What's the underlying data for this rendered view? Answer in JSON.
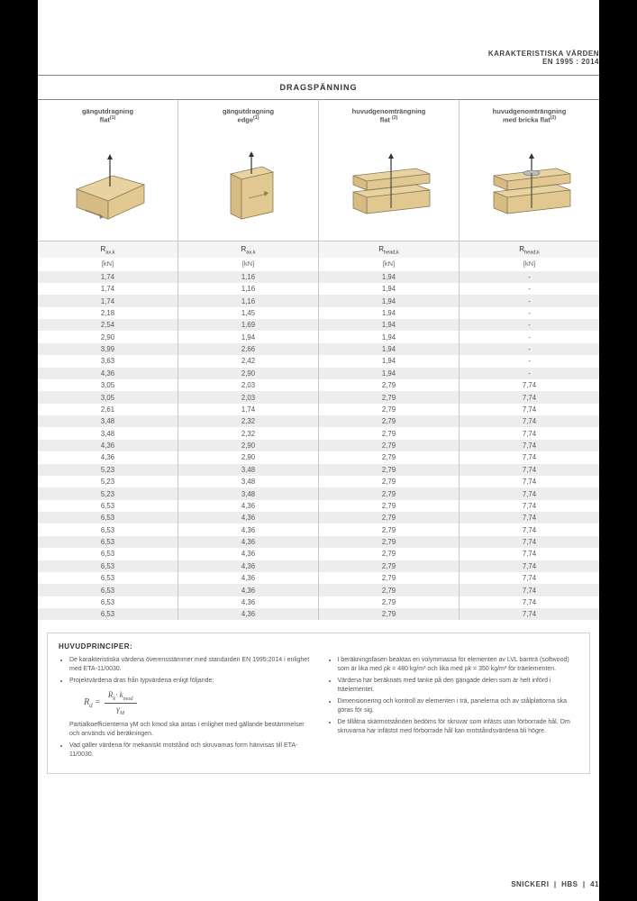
{
  "header": {
    "line1": "KARAKTERISTISKA VÄRDEN",
    "line2": "EN 1995 : 2014"
  },
  "section_title": "DRAGSPÄNNING",
  "columns": [
    {
      "title_l1": "gängutdragning",
      "title_l2": "flat",
      "sup": "(1)",
      "symbol": "R",
      "symbol_sub": "ax,k",
      "unit": "[kN]"
    },
    {
      "title_l1": "gängutdragning",
      "title_l2": "edge",
      "sup": "(1)",
      "symbol": "R",
      "symbol_sub": "ax,k",
      "unit": "[kN]"
    },
    {
      "title_l1": "huvudgenomträngning",
      "title_l2": "flat ",
      "sup": "(2)",
      "symbol": "R",
      "symbol_sub": "head,k",
      "unit": "[kN]"
    },
    {
      "title_l1": "huvudgenomträngning",
      "title_l2": "med bricka flat",
      "sup": "(2)",
      "symbol": "R",
      "symbol_sub": "head,k",
      "unit": "[kN]"
    }
  ],
  "rows": [
    [
      "1,74",
      "1,16",
      "1,94",
      "-"
    ],
    [
      "1,74",
      "1,16",
      "1,94",
      "-"
    ],
    [
      "1,74",
      "1,16",
      "1,94",
      "-"
    ],
    [
      "2,18",
      "1,45",
      "1,94",
      "-"
    ],
    [
      "2,54",
      "1,69",
      "1,94",
      "-"
    ],
    [
      "2,90",
      "1,94",
      "1,94",
      "-"
    ],
    [
      "3,99",
      "2,66",
      "1,94",
      "-"
    ],
    [
      "3,63",
      "2,42",
      "1,94",
      "-"
    ],
    [
      "4,36",
      "2,90",
      "1,94",
      "-"
    ],
    [
      "3,05",
      "2,03",
      "2,79",
      "7,74"
    ],
    [
      "3,05",
      "2,03",
      "2,79",
      "7,74"
    ],
    [
      "2,61",
      "1,74",
      "2,79",
      "7,74"
    ],
    [
      "3,48",
      "2,32",
      "2,79",
      "7,74"
    ],
    [
      "3,48",
      "2,32",
      "2,79",
      "7,74"
    ],
    [
      "4,36",
      "2,90",
      "2,79",
      "7,74"
    ],
    [
      "4,36",
      "2,90",
      "2,79",
      "7,74"
    ],
    [
      "5,23",
      "3,48",
      "2,79",
      "7,74"
    ],
    [
      "5,23",
      "3,48",
      "2,79",
      "7,74"
    ],
    [
      "5,23",
      "3,48",
      "2,79",
      "7,74"
    ],
    [
      "6,53",
      "4,36",
      "2,79",
      "7,74"
    ],
    [
      "6,53",
      "4,36",
      "2,79",
      "7,74"
    ],
    [
      "6,53",
      "4,36",
      "2,79",
      "7,74"
    ],
    [
      "6,53",
      "4,36",
      "2,79",
      "7,74"
    ],
    [
      "6,53",
      "4,36",
      "2,79",
      "7,74"
    ],
    [
      "6,53",
      "4,36",
      "2,79",
      "7,74"
    ],
    [
      "6,53",
      "4,36",
      "2,79",
      "7,74"
    ],
    [
      "6,53",
      "4,36",
      "2,79",
      "7,74"
    ],
    [
      "6,53",
      "4,36",
      "2,79",
      "7,74"
    ],
    [
      "6,53",
      "4,36",
      "2,79",
      "7,74"
    ]
  ],
  "principles": {
    "title": "HUVUDPRINCIPER:",
    "left": [
      "De karakteristiska värdena överensstämmer med standarden EN 1995:2014 i enlighet med ETA-11/0030.",
      "Projektvärdena dras från typvärdena enligt följande:"
    ],
    "left_after": [
      "Partialkoefficienterna γM och kmod ska antas i enlighet med gällande bestämmelser och används vid beräkningen.",
      "Vad gäller värdena för mekaniskt motstånd och skruvarnas form hänvisas till ETA-11/0030."
    ],
    "right": [
      "I beräkningsfasen beaktas en volymmassa för elementen av LVL barrträ (softwood) som är lika med ρk = 480 kg/m³ och lika med ρk = 350 kg/m³ för träelementen.",
      "Värdena har beräknats med tanke på den gängade delen som är helt införd i träelementet.",
      "Dimensionering och kontroll av elementen i trä, panelerna och av stålplattorna ska göras för sig.",
      "De tillåtna skärmotstånden bedöms för skruvar som infästs utan förborrade hål. Om skruvarna har infästst med förborrade hål kan motståndsvärdena bli högre."
    ],
    "formula": {
      "lhs": "R",
      "lhs_sub": "d",
      "num_a": "R",
      "num_a_sub": "k",
      "num_b": "k",
      "num_b_sub": "mod",
      "den": "γ",
      "den_sub": "M"
    }
  },
  "footer": {
    "brand": "SNICKERI",
    "series": "HBS",
    "page": "41"
  },
  "colors": {
    "wood_light": "#e8d3a0",
    "wood_shadow": "#d6bb82",
    "wood_stroke": "#8a7a56"
  }
}
